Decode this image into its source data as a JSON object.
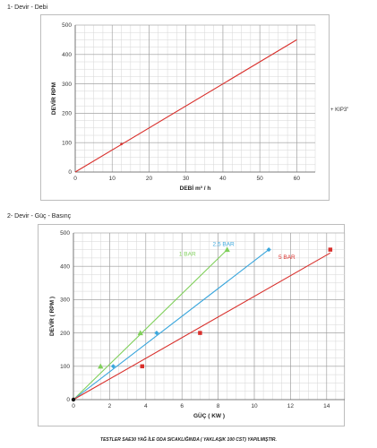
{
  "sections": {
    "chart1_title": "1- Devir - Debi",
    "chart2_title": "2- Devir - Güç - Basınç"
  },
  "side_note": "+ KIP3\"",
  "footnote": "TESTLER SAE30 YAĞ İLE ODA SICAKLIĞINDA ( YAKLAŞIK 100 CST) YAPILMIŞTIR.",
  "chart_data": [
    {
      "type": "line",
      "title": "",
      "xlabel": "DEBİ m³ / h",
      "ylabel": "DEVİR RPM",
      "xlim": [
        0,
        65
      ],
      "ylim": [
        0,
        500
      ],
      "x_ticks": [
        0,
        10,
        20,
        30,
        40,
        50,
        60
      ],
      "y_ticks": [
        0,
        100,
        200,
        300,
        400,
        500
      ],
      "grid": true,
      "series": [
        {
          "color": "#d9302c",
          "x": [
            0,
            60
          ],
          "y": [
            0,
            450
          ]
        }
      ],
      "markers": [
        {
          "x": 12.5,
          "y": 95,
          "color": "#d9302c"
        }
      ]
    },
    {
      "type": "line",
      "title": "",
      "xlabel": "GÜÇ ( KW )",
      "ylabel": "DEVİR ( RPM )",
      "xlim": [
        0,
        15
      ],
      "ylim": [
        0,
        500
      ],
      "x_ticks": [
        0,
        2,
        4,
        6,
        8,
        10,
        12,
        14
      ],
      "y_ticks": [
        0,
        100,
        200,
        300,
        400,
        500
      ],
      "grid": true,
      "series": [
        {
          "name": "1 BAR",
          "color": "#7fcf5a",
          "marker": "triangle",
          "label_at": [
            6.3,
            432
          ],
          "line": {
            "x": [
              0,
              8.5
            ],
            "y": [
              0,
              450
            ]
          },
          "points": {
            "x": [
              1.5,
              3.7,
              8.5
            ],
            "y": [
              100,
              200,
              450
            ]
          }
        },
        {
          "name": "2,5 BAR",
          "color": "#3aa6dc",
          "marker": "diamond",
          "label_at": [
            8.3,
            461
          ],
          "line": {
            "x": [
              0,
              10.8
            ],
            "y": [
              0,
              450
            ]
          },
          "points": {
            "x": [
              2.2,
              4.6,
              10.8
            ],
            "y": [
              100,
              200,
              450
            ]
          }
        },
        {
          "name": "5 BAR",
          "color": "#d9302c",
          "marker": "square",
          "label_at": [
            11.8,
            422
          ],
          "line": {
            "x": [
              0,
              14.2
            ],
            "y": [
              0,
              440
            ]
          },
          "points": {
            "x": [
              3.8,
              7.0,
              14.2
            ],
            "y": [
              100,
              200,
              450
            ]
          }
        }
      ],
      "origin_marker": {
        "x": 0,
        "y": 0,
        "color": "#111111"
      }
    }
  ]
}
